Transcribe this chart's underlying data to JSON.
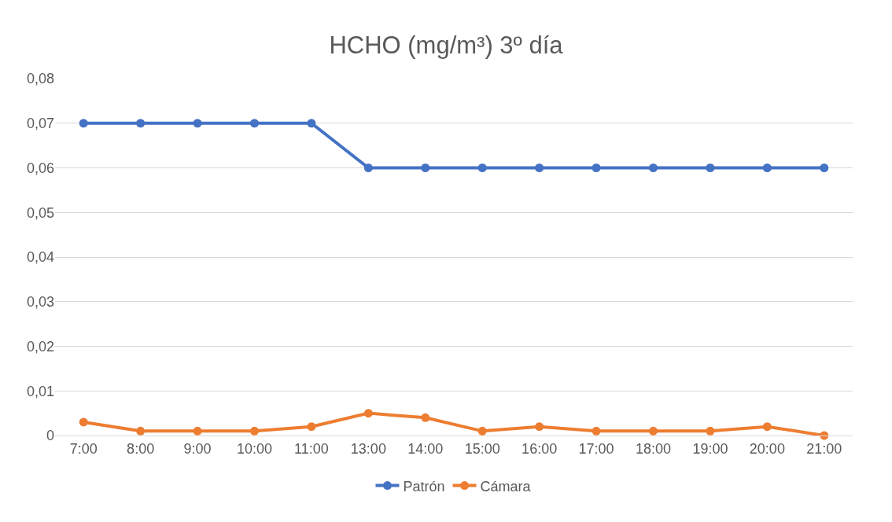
{
  "chart_data": {
    "type": "line",
    "title": "HCHO (mg/m³) 3º día",
    "categories": [
      "7:00",
      "8:00",
      "9:00",
      "10:00",
      "11:00",
      "13:00",
      "14:00",
      "15:00",
      "16:00",
      "17:00",
      "18:00",
      "19:00",
      "20:00",
      "21:00"
    ],
    "series": [
      {
        "name": "Patrón",
        "color": "#4472c4",
        "values": [
          0.07,
          0.07,
          0.07,
          0.07,
          0.07,
          0.06,
          0.06,
          0.06,
          0.06,
          0.06,
          0.06,
          0.06,
          0.06,
          0.06
        ]
      },
      {
        "name": "Cámara",
        "color": "#ed7d31",
        "values": [
          0.003,
          0.001,
          0.001,
          0.001,
          0.002,
          0.005,
          0.004,
          0.001,
          0.002,
          0.001,
          0.001,
          0.001,
          0.002,
          0
        ]
      }
    ],
    "ylim": [
      0,
      0.08
    ],
    "yticks": [
      0,
      {
        "value": 0.01,
        "label": "0,01"
      },
      {
        "value": 0.02,
        "label": "0,02"
      },
      {
        "value": 0.03,
        "label": "0,03"
      },
      {
        "value": 0.04,
        "label": "0,04"
      },
      {
        "value": 0.05,
        "label": "0,05"
      },
      {
        "value": 0.06,
        "label": "0,06"
      },
      {
        "value": 0.07,
        "label": "0,07"
      },
      {
        "value": 0.08,
        "label": "0,08"
      }
    ],
    "grid": "y",
    "legend": "bottom",
    "marker": "circle",
    "line_style": "solid"
  }
}
